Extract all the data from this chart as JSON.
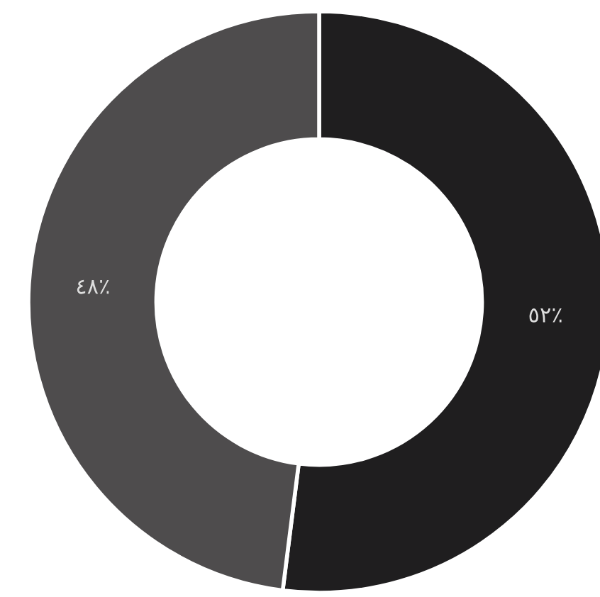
{
  "chart_data": {
    "type": "donut",
    "categories": [
      null,
      null
    ],
    "values": [
      52,
      48
    ],
    "colors": [
      "#1f1e1f",
      "#4e4c4d"
    ],
    "value_labels": [
      "٥٢٪",
      "٤٨٪"
    ]
  }
}
